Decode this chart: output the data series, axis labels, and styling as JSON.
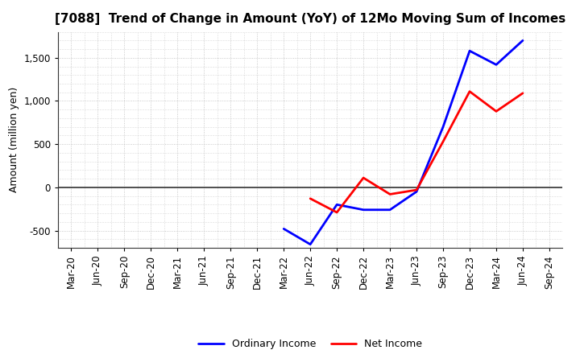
{
  "title": "[7088]  Trend of Change in Amount (YoY) of 12Mo Moving Sum of Incomes",
  "ylabel": "Amount (million yen)",
  "x_labels": [
    "Mar-20",
    "Jun-20",
    "Sep-20",
    "Dec-20",
    "Mar-21",
    "Jun-21",
    "Sep-21",
    "Dec-21",
    "Mar-22",
    "Jun-22",
    "Sep-22",
    "Dec-22",
    "Mar-23",
    "Jun-23",
    "Sep-23",
    "Dec-23",
    "Mar-24",
    "Jun-24",
    "Sep-24"
  ],
  "ordinary_income": [
    null,
    null,
    null,
    null,
    null,
    null,
    null,
    null,
    -480,
    -660,
    -200,
    -260,
    -260,
    -50,
    700,
    1580,
    1420,
    1700,
    null
  ],
  "net_income": [
    null,
    null,
    null,
    null,
    null,
    null,
    null,
    null,
    null,
    -130,
    -290,
    110,
    -80,
    -30,
    530,
    1110,
    880,
    1090,
    null
  ],
  "ordinary_color": "#0000ff",
  "net_color": "#ff0000",
  "ylim": [
    -700,
    1800
  ],
  "yticks": [
    -500,
    0,
    500,
    1000,
    1500
  ],
  "background_color": "#ffffff",
  "grid_color": "#bbbbbb",
  "legend_ordinary": "Ordinary Income",
  "legend_net": "Net Income",
  "title_fontsize": 11,
  "ylabel_fontsize": 9,
  "tick_fontsize": 8.5,
  "legend_fontsize": 9,
  "line_width": 2.0
}
